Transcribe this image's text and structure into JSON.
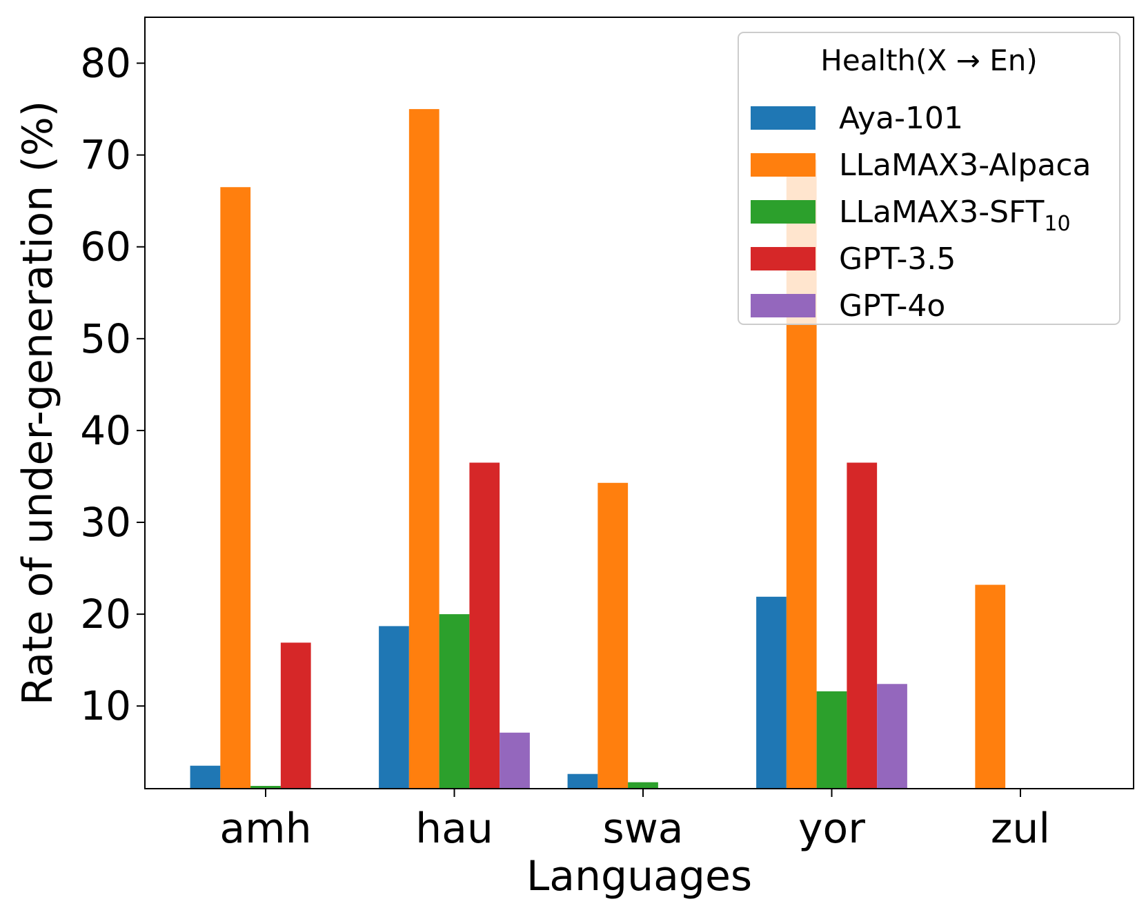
{
  "chart_data": {
    "type": "bar",
    "title": "",
    "xlabel": "Languages",
    "ylabel": "Rate of under-generation (%)",
    "categories": [
      "amh",
      "hau",
      "swa",
      "yor",
      "zul"
    ],
    "ylim": [
      1,
      85
    ],
    "yticks": [
      10,
      20,
      30,
      40,
      50,
      60,
      70,
      80
    ],
    "legend": {
      "title": "Health(X → En)",
      "placement": "top-right"
    },
    "series": [
      {
        "name": "Aya-101",
        "name_base": "Aya-101",
        "name_sub": "",
        "color": "#1f77b4",
        "values": [
          3.5,
          18.7,
          2.6,
          21.9,
          null
        ]
      },
      {
        "name": "LLaMAX3-Alpaca",
        "name_base": "LLaMAX3-Alpaca",
        "name_sub": "",
        "color": "#ff7f0e",
        "values": [
          66.5,
          75.0,
          34.3,
          69.5,
          23.2
        ]
      },
      {
        "name": "LLaMAX3-SFT10",
        "name_base": "LLaMAX3-SFT",
        "name_sub": "10",
        "color": "#2ca02c",
        "values": [
          1.3,
          20.0,
          1.7,
          11.6,
          null
        ]
      },
      {
        "name": "GPT-3.5",
        "name_base": "GPT-3.5",
        "name_sub": "",
        "color": "#d62728",
        "values": [
          16.9,
          36.5,
          null,
          36.5,
          null
        ]
      },
      {
        "name": "GPT-4o",
        "name_base": "GPT-4o",
        "name_sub": "",
        "color": "#9467bd",
        "values": [
          null,
          7.1,
          null,
          12.4,
          null
        ]
      }
    ]
  }
}
